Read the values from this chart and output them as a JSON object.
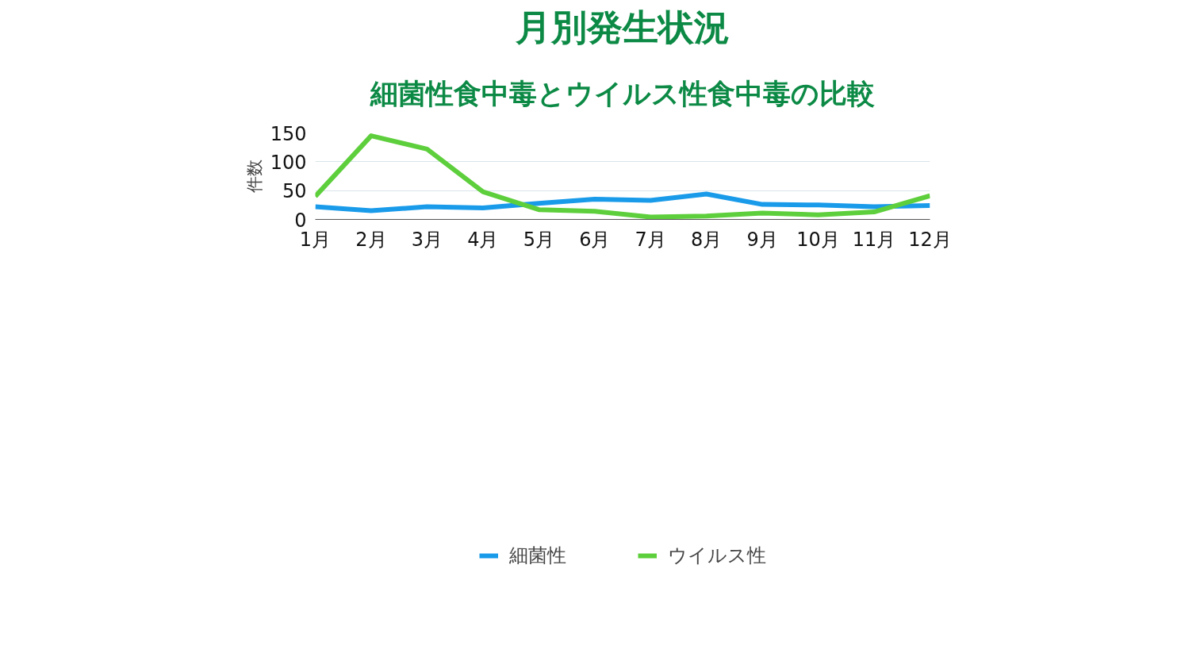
{
  "chart_data": {
    "type": "line",
    "title": "月別発生状況",
    "subtitle": "細菌性食中毒とウイルス性食中毒の比較",
    "ylabel": "件数",
    "categories": [
      "1月",
      "2月",
      "3月",
      "4月",
      "5月",
      "6月",
      "7月",
      "8月",
      "9月",
      "10月",
      "11月",
      "12月"
    ],
    "series": [
      {
        "name": "細菌性",
        "color": "#1a9bea",
        "values": [
          22,
          15,
          22,
          20,
          28,
          35,
          33,
          44,
          26,
          25,
          22,
          24
        ]
      },
      {
        "name": "ウイルス性",
        "color": "#5ecf3c",
        "values": [
          40,
          145,
          122,
          48,
          17,
          14,
          4,
          6,
          11,
          8,
          13,
          41
        ]
      }
    ],
    "ylim": [
      0,
      150
    ],
    "yticks": [
      0,
      50,
      100,
      150
    ],
    "grid": "y",
    "legend": "bottom",
    "marker": "none",
    "line_style": "solid"
  }
}
